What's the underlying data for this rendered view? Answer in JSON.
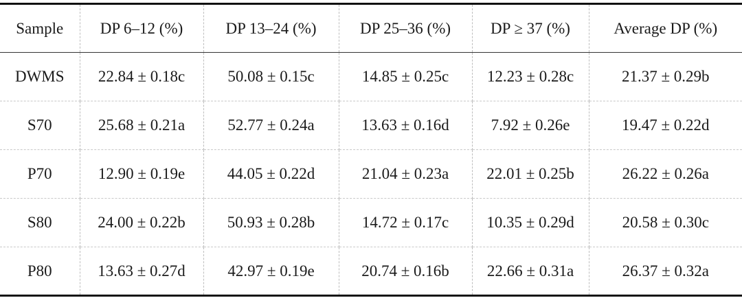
{
  "table": {
    "headers": [
      "Sample",
      "DP 6–12 (%)",
      "DP 13–24 (%)",
      "DP 25–36 (%)",
      "DP ≥ 37 (%)",
      "Average DP (%)"
    ],
    "rows": [
      [
        "DWMS",
        "22.84 ± 0.18c",
        "50.08 ± 0.15c",
        "14.85 ± 0.25c",
        "12.23 ± 0.28c",
        "21.37 ± 0.29b"
      ],
      [
        "S70",
        "25.68 ± 0.21a",
        "52.77 ± 0.24a",
        "13.63 ± 0.16d",
        "7.92 ± 0.26e",
        "19.47 ± 0.22d"
      ],
      [
        "P70",
        "12.90 ± 0.19e",
        "44.05 ± 0.22d",
        "21.04 ± 0.23a",
        "22.01 ± 0.25b",
        "26.22 ± 0.26a"
      ],
      [
        "S80",
        "24.00 ± 0.22b",
        "50.93 ± 0.28b",
        "14.72 ± 0.17c",
        "10.35 ± 0.29d",
        "20.58 ± 0.30c"
      ],
      [
        "P80",
        "13.63 ± 0.27d",
        "42.97 ± 0.19e",
        "20.74 ± 0.16b",
        "22.66 ± 0.31a",
        "26.37 ± 0.32a"
      ]
    ]
  }
}
